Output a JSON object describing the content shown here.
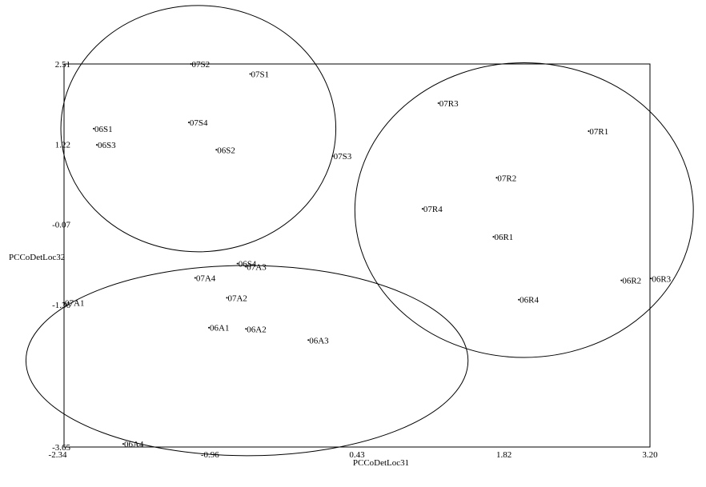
{
  "chart_data": {
    "type": "scatter",
    "xlabel": "PCCoDetLoc31",
    "ylabel": "PCCoDetLoc32",
    "xlim": [
      -2.34,
      3.2
    ],
    "ylim": [
      -3.65,
      2.51
    ],
    "x_ticks": [
      {
        "value": -2.34,
        "label": "-2.34"
      },
      {
        "value": -0.96,
        "label": "-0.96"
      },
      {
        "value": 0.43,
        "label": "0.43"
      },
      {
        "value": 1.82,
        "label": "1.82"
      },
      {
        "value": 3.2,
        "label": "3.20"
      }
    ],
    "y_ticks": [
      {
        "value": 2.51,
        "label": "2.51"
      },
      {
        "value": 1.22,
        "label": "1.22"
      },
      {
        "value": -0.07,
        "label": "-0.07"
      },
      {
        "value": -1.36,
        "label": "-1.36"
      },
      {
        "value": -3.65,
        "label": "-3.65"
      }
    ],
    "points": [
      {
        "label": "07S2",
        "x": -1.14,
        "y": 2.51
      },
      {
        "label": "07S1",
        "x": -0.58,
        "y": 2.35
      },
      {
        "label": "06S1",
        "x": -2.06,
        "y": 1.47
      },
      {
        "label": "06S3",
        "x": -2.03,
        "y": 1.21
      },
      {
        "label": "07S4",
        "x": -1.16,
        "y": 1.57
      },
      {
        "label": "06S2",
        "x": -0.9,
        "y": 1.13
      },
      {
        "label": "07S3",
        "x": 0.2,
        "y": 1.03
      },
      {
        "label": "07R3",
        "x": 1.2,
        "y": 1.88
      },
      {
        "label": "07R1",
        "x": 2.62,
        "y": 1.43
      },
      {
        "label": "07R2",
        "x": 1.75,
        "y": 0.68
      },
      {
        "label": "07R4",
        "x": 1.05,
        "y": 0.18
      },
      {
        "label": "06R1",
        "x": 1.72,
        "y": -0.27
      },
      {
        "label": "06R2",
        "x": 2.93,
        "y": -0.97
      },
      {
        "label": "06R3",
        "x": 3.21,
        "y": -0.94
      },
      {
        "label": "06R4",
        "x": 1.96,
        "y": -1.28
      },
      {
        "label": "06S4",
        "x": -0.7,
        "y": -0.7
      },
      {
        "label": "07A3",
        "x": -0.62,
        "y": -0.75
      },
      {
        "label": "07A4",
        "x": -1.1,
        "y": -0.93
      },
      {
        "label": "07A2",
        "x": -0.8,
        "y": -1.25
      },
      {
        "label": "07A1",
        "x": -2.34,
        "y": -1.33
      },
      {
        "label": "06A1",
        "x": -0.97,
        "y": -1.73
      },
      {
        "label": "06A2",
        "x": -0.62,
        "y": -1.75
      },
      {
        "label": "06A3",
        "x": -0.03,
        "y": -1.93
      },
      {
        "label": "06A4",
        "x": -1.78,
        "y": -3.6
      }
    ],
    "ellipses": [
      {
        "group": "S",
        "cx": -1.07,
        "cy": 1.47,
        "rx": 1.3,
        "ry": 1.98
      },
      {
        "group": "R",
        "cx": 2.01,
        "cy": 0.16,
        "rx": 1.6,
        "ry": 2.37
      },
      {
        "group": "A",
        "cx": -0.61,
        "cy": -2.26,
        "rx": 2.09,
        "ry": 1.53
      }
    ],
    "grid": false,
    "legend": "none"
  }
}
